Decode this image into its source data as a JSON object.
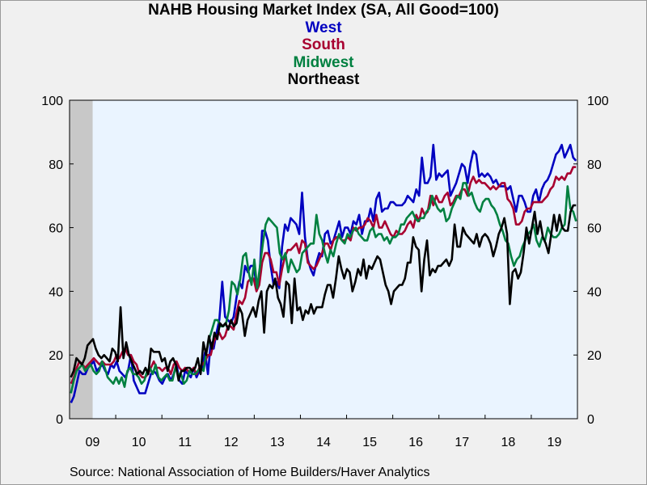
{
  "chart_data": {
    "type": "line",
    "title": "NAHB Housing Market Index (SA, All Good=100)",
    "source": "Source:  National Association of Home Builders/Haver Analytics",
    "x_tick_labels": [
      "09",
      "10",
      "11",
      "12",
      "13",
      "14",
      "15",
      "16",
      "17",
      "18",
      "19"
    ],
    "x_start_year": 2009,
    "x_years": 11,
    "ylim": [
      0,
      100
    ],
    "y_ticks": [
      0,
      20,
      40,
      60,
      80,
      100
    ],
    "recession_shade": {
      "from": 2009.0,
      "to": 2009.5,
      "color": "#c8c8c8"
    },
    "plot_background": "#eaf4ff",
    "series": [
      {
        "name": "West",
        "color": "#0000c0",
        "values": [
          5,
          7,
          11,
          15,
          14,
          14,
          16,
          17,
          18,
          15,
          16,
          17,
          15,
          14,
          17,
          16,
          18,
          15,
          14,
          13,
          15,
          20,
          12,
          10,
          8,
          8,
          8,
          11,
          14,
          15,
          14,
          12,
          11,
          13,
          14,
          12,
          14,
          17,
          12,
          11,
          15,
          14,
          13,
          16,
          13,
          15,
          16,
          21,
          14,
          24,
          22,
          27,
          31,
          43,
          32,
          31,
          30,
          32,
          38,
          43,
          41,
          48,
          46,
          48,
          48,
          42,
          44,
          59,
          59,
          56,
          48,
          42,
          43,
          41,
          54,
          61,
          59,
          63,
          62,
          61,
          58,
          71,
          57,
          50,
          47,
          45,
          49,
          52,
          51,
          58,
          59,
          55,
          56,
          59,
          62,
          57,
          60,
          60,
          58,
          62,
          61,
          64,
          58,
          62,
          62,
          66,
          62,
          69,
          71,
          65,
          66,
          66,
          68,
          68,
          67,
          67,
          67,
          68,
          70,
          69,
          68,
          72,
          70,
          82,
          74,
          74,
          76,
          86,
          75,
          77,
          76,
          77,
          78,
          70,
          72,
          74,
          77,
          80,
          79,
          74,
          80,
          84,
          83,
          76,
          77,
          76,
          77,
          76,
          74,
          75,
          73,
          73,
          73,
          72,
          73,
          69,
          65,
          70,
          70,
          68,
          65,
          65,
          70,
          72,
          68,
          72,
          74,
          75,
          77,
          80,
          83,
          84,
          86,
          82,
          84,
          86,
          82,
          81
        ]
      },
      {
        "name": "South",
        "color": "#a80030",
        "values": [
          11,
          13,
          16,
          18,
          17,
          16,
          17,
          18,
          19,
          18,
          17,
          18,
          17,
          17,
          17,
          18,
          20,
          19,
          21,
          22,
          20,
          20,
          18,
          17,
          14,
          13,
          13,
          14,
          16,
          18,
          16,
          16,
          15,
          16,
          16,
          14,
          17,
          18,
          16,
          15,
          16,
          15,
          15,
          16,
          14,
          16,
          17,
          18,
          20,
          20,
          24,
          26,
          27,
          25,
          26,
          29,
          29,
          28,
          33,
          37,
          36,
          38,
          43,
          44,
          44,
          40,
          42,
          49,
          52,
          52,
          50,
          46,
          46,
          42,
          47,
          51,
          53,
          53,
          54,
          55,
          52,
          56,
          55,
          49,
          48,
          47,
          48,
          50,
          52,
          55,
          55,
          53,
          56,
          57,
          57,
          56,
          56,
          57,
          56,
          60,
          59,
          60,
          60,
          61,
          63,
          62,
          60,
          64,
          60,
          60,
          62,
          60,
          58,
          57,
          59,
          58,
          58,
          59,
          61,
          62,
          60,
          64,
          62,
          66,
          64,
          65,
          70,
          67,
          70,
          68,
          68,
          70,
          71,
          67,
          68,
          70,
          70,
          72,
          72,
          70,
          74,
          76,
          74,
          75,
          74,
          74,
          73,
          72,
          73,
          72,
          73,
          74,
          74,
          69,
          68,
          66,
          61,
          61,
          62,
          65,
          66,
          66,
          68,
          68,
          68,
          68,
          69,
          70,
          72,
          73,
          76,
          75,
          76,
          75,
          77,
          77,
          79,
          79
        ]
      },
      {
        "name": "Midwest",
        "color": "#008040",
        "values": [
          8,
          12,
          15,
          16,
          17,
          15,
          16,
          17,
          15,
          14,
          15,
          18,
          16,
          13,
          12,
          11,
          13,
          11,
          13,
          10,
          15,
          16,
          14,
          14,
          13,
          11,
          12,
          15,
          16,
          14,
          17,
          13,
          12,
          13,
          14,
          12,
          12,
          16,
          14,
          14,
          11,
          12,
          15,
          14,
          14,
          15,
          16,
          15,
          21,
          25,
          28,
          31,
          31,
          29,
          29,
          30,
          34,
          43,
          42,
          39,
          44,
          51,
          52,
          46,
          42,
          50,
          41,
          48,
          55,
          61,
          63,
          62,
          61,
          60,
          52,
          50,
          52,
          46,
          50,
          48,
          46,
          47,
          52,
          53,
          54,
          55,
          55,
          64,
          58,
          56,
          52,
          49,
          53,
          51,
          55,
          58,
          56,
          55,
          58,
          57,
          59,
          60,
          58,
          57,
          56,
          56,
          59,
          60,
          57,
          58,
          58,
          56,
          57,
          55,
          57,
          57,
          58,
          61,
          61,
          63,
          64,
          65,
          63,
          62,
          63,
          63,
          65,
          66,
          70,
          68,
          66,
          65,
          66,
          62,
          63,
          66,
          68,
          70,
          69,
          74,
          74,
          70,
          71,
          68,
          66,
          65,
          68,
          69,
          69,
          67,
          66,
          64,
          61,
          59,
          56,
          55,
          51,
          48,
          50,
          51,
          54,
          56,
          58,
          59,
          61,
          56,
          54,
          57,
          56,
          60,
          58,
          57,
          57,
          58,
          60,
          61,
          73,
          66,
          65,
          62
        ]
      },
      {
        "name": "Northeast",
        "color": "#000000",
        "values": [
          13,
          15,
          19,
          18,
          17,
          19,
          23,
          24,
          25,
          22,
          20,
          19,
          20,
          19,
          18,
          22,
          21,
          18,
          35,
          19,
          24,
          20,
          18,
          16,
          14,
          15,
          14,
          16,
          14,
          22,
          21,
          21,
          21,
          18,
          19,
          15,
          18,
          19,
          17,
          12,
          15,
          15,
          16,
          16,
          15,
          16,
          19,
          14,
          24,
          20,
          26,
          22,
          27,
          25,
          30,
          29,
          30,
          28,
          31,
          29,
          30,
          35,
          33,
          26,
          31,
          33,
          35,
          32,
          37,
          40,
          27,
          40,
          42,
          41,
          44,
          38,
          36,
          32,
          43,
          42,
          30,
          44,
          34,
          35,
          31,
          34,
          33,
          36,
          33,
          35,
          35,
          35,
          39,
          42,
          42,
          38,
          44,
          51,
          47,
          44,
          47,
          46,
          40,
          43,
          47,
          45,
          50,
          44,
          48,
          47,
          49,
          51,
          50,
          46,
          42,
          40,
          36,
          40,
          41,
          42,
          42,
          44,
          49,
          49,
          57,
          54,
          53,
          40,
          50,
          56,
          45,
          47,
          46,
          48,
          48,
          49,
          50,
          48,
          50,
          61,
          54,
          54,
          60,
          58,
          57,
          56,
          55,
          58,
          54,
          57,
          58,
          57,
          55,
          51,
          54,
          58,
          60,
          63,
          58,
          36,
          46,
          47,
          44,
          46,
          52,
          60,
          55,
          60,
          65,
          58,
          62,
          57,
          55,
          52,
          58,
          64,
          59,
          64,
          60,
          59,
          59,
          65,
          67,
          67
        ]
      }
    ]
  }
}
